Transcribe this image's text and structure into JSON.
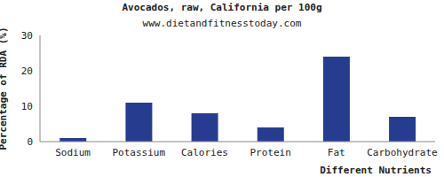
{
  "chart_data": {
    "type": "bar",
    "title": "Avocados, raw, California per 100g",
    "subtitle": "www.dietandfitnesstoday.com",
    "x_label": "Different Nutrients",
    "y_label": "Percentage of RDA (%)",
    "categories": [
      "Sodium",
      "Potassium",
      "Calories",
      "Protein",
      "Fat",
      "Carbohydrate"
    ],
    "values": [
      1,
      11,
      8,
      4,
      24,
      7
    ],
    "color": "#263d8f",
    "ylim": [
      0,
      30
    ],
    "yticks": [
      0,
      10,
      20,
      30
    ],
    "grid": false
  }
}
